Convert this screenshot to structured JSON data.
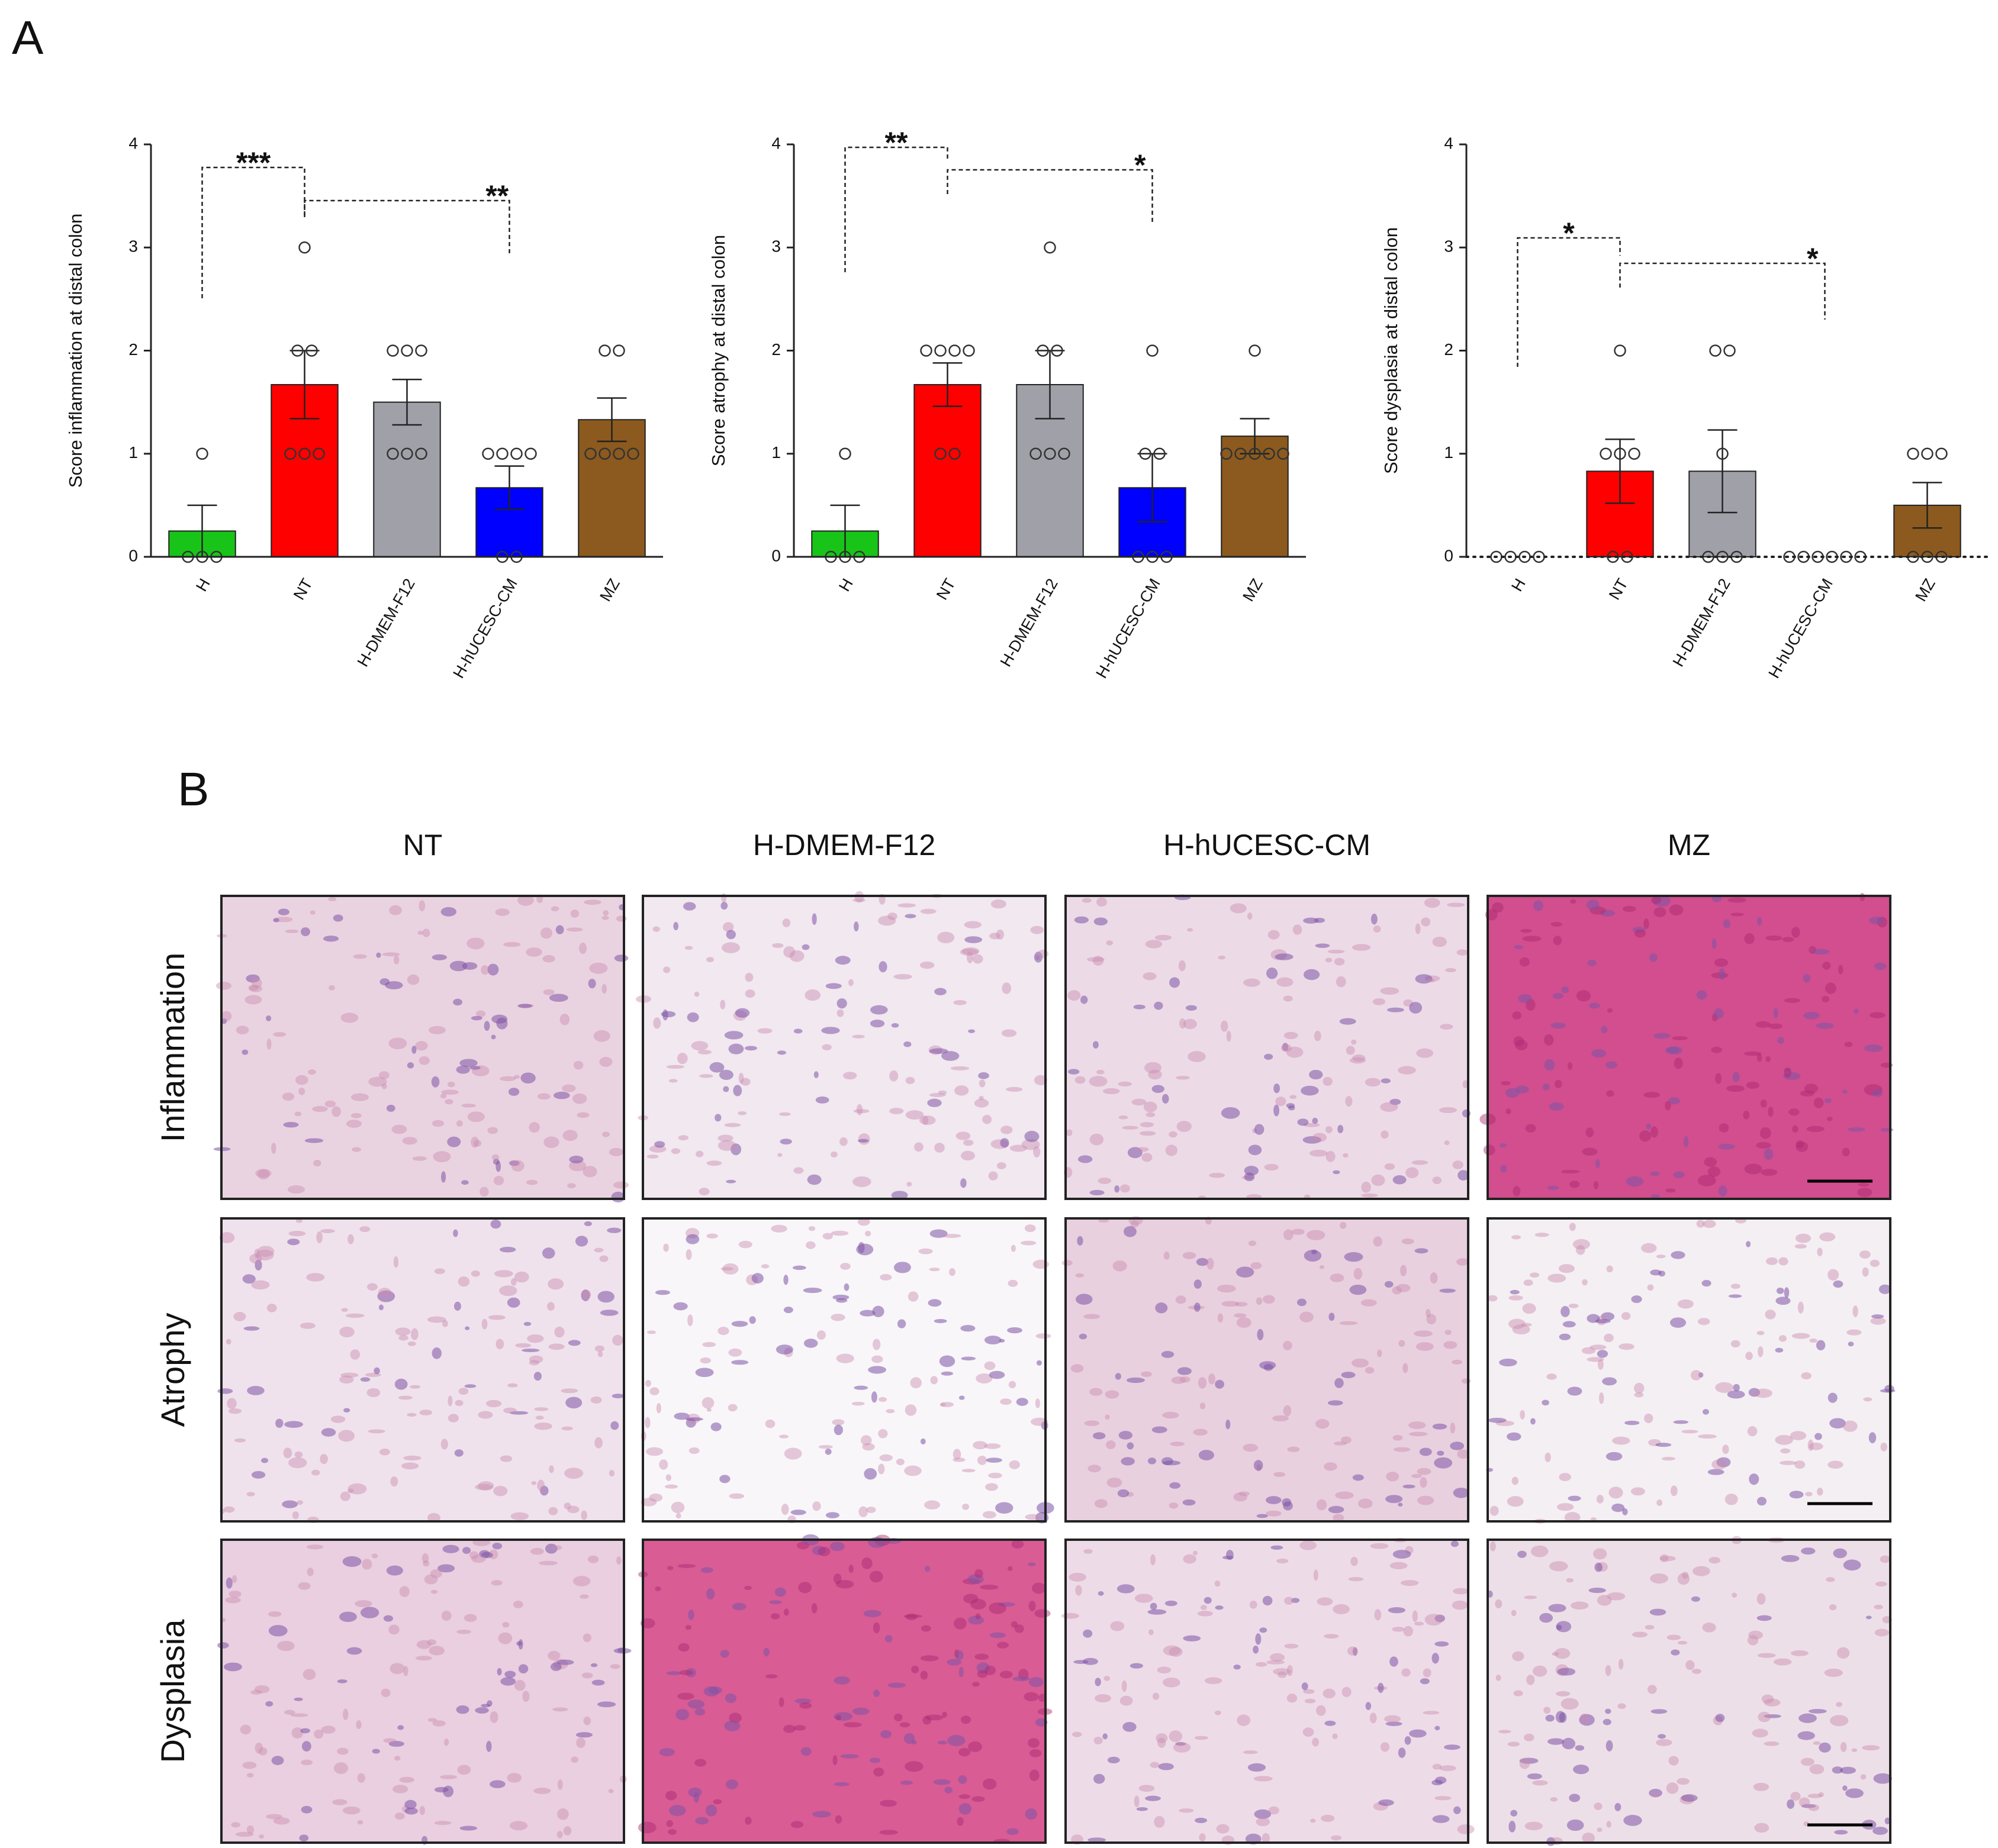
{
  "panel_labels": [
    "A",
    "B"
  ],
  "chart_data": [
    {
      "type": "bar",
      "y_label": "Score inflammation at distal colon",
      "categories": [
        "H",
        "NT",
        "H-DMEM-F12",
        "H-hUCESC-CM",
        "MZ"
      ],
      "values": [
        0.25,
        1.67,
        1.5,
        0.67,
        1.33
      ],
      "errors": [
        0.25,
        0.33,
        0.22,
        0.21,
        0.21
      ],
      "colors": [
        "#19c419",
        "#ff0000",
        "#a0a0a8",
        "#0000ff",
        "#8c5a1e"
      ],
      "points": [
        [
          1,
          0,
          0,
          0
        ],
        [
          3,
          2,
          2,
          1,
          1,
          1
        ],
        [
          2,
          2,
          2,
          1,
          1,
          1
        ],
        [
          1,
          1,
          1,
          1,
          0,
          0
        ],
        [
          2,
          2,
          1,
          1,
          1,
          1
        ]
      ],
      "ylim": [
        0,
        4
      ],
      "yticks": [
        0,
        1,
        2,
        3,
        4
      ],
      "baseline": "solid",
      "annotations": [
        "***",
        "**"
      ]
    },
    {
      "type": "bar",
      "y_label": "Score atrophy at distal colon",
      "categories": [
        "H",
        "NT",
        "H-DMEM-F12",
        "H-hUCESC-CM",
        "MZ"
      ],
      "values": [
        0.25,
        1.67,
        1.67,
        0.67,
        1.17
      ],
      "errors": [
        0.25,
        0.21,
        0.33,
        0.33,
        0.17
      ],
      "colors": [
        "#19c419",
        "#ff0000",
        "#a0a0a8",
        "#0000ff",
        "#8c5a1e"
      ],
      "points": [
        [
          1,
          0,
          0,
          0
        ],
        [
          2,
          2,
          2,
          2,
          1,
          1
        ],
        [
          3,
          2,
          2,
          1,
          1,
          1
        ],
        [
          2,
          1,
          1,
          0,
          0,
          0
        ],
        [
          2,
          1,
          1,
          1,
          1,
          1
        ]
      ],
      "ylim": [
        0,
        4
      ],
      "yticks": [
        0,
        1,
        2,
        3,
        4
      ],
      "baseline": "solid",
      "annotations": [
        "**",
        "*"
      ]
    },
    {
      "type": "bar",
      "y_label": "Score dysplasia at distal colon",
      "categories": [
        "H",
        "NT",
        "H-DMEM-F12",
        "H-hUCESC-CM",
        "MZ"
      ],
      "values": [
        0,
        0.83,
        0.83,
        0,
        0.5
      ],
      "errors": [
        0,
        0.31,
        0.4,
        0,
        0.22
      ],
      "colors": [
        "#19c419",
        "#ff0000",
        "#a0a0a8",
        "#0000ff",
        "#8c5a1e"
      ],
      "points": [
        [
          0,
          0,
          0,
          0
        ],
        [
          2,
          1,
          1,
          1,
          0,
          0
        ],
        [
          2,
          2,
          1,
          0,
          0,
          0
        ],
        [
          0,
          0,
          0,
          0,
          0,
          0
        ],
        [
          1,
          1,
          1,
          0,
          0,
          0
        ]
      ],
      "ylim": [
        0,
        4
      ],
      "yticks": [
        0,
        1,
        2,
        3,
        4
      ],
      "baseline": "dotted",
      "annotations": [
        "*",
        "*"
      ]
    }
  ],
  "histology": {
    "columns": [
      "NT",
      "H-DMEM-F12",
      "H-hUCESC-CM",
      "MZ"
    ],
    "rows": [
      "Inflammation",
      "Atrophy",
      "Dysplasia"
    ]
  }
}
